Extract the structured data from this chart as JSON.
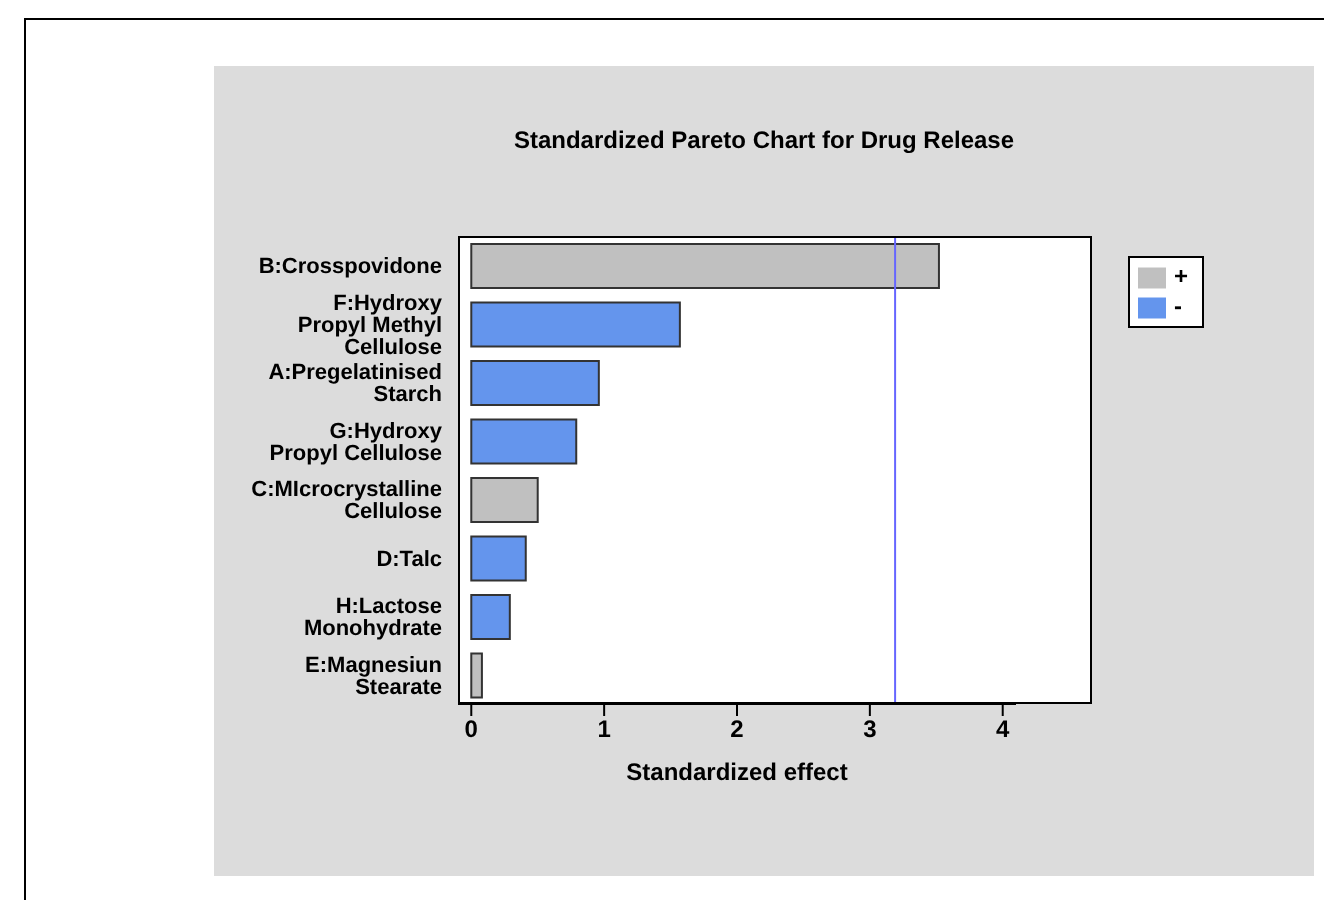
{
  "chart_data": {
    "type": "bar",
    "orientation": "horizontal",
    "stacked": true,
    "title": "Standardized Pareto Chart for Drug Release",
    "xlabel": "Standardized effect",
    "categories": [
      "B:Crosspovidone",
      "F:Hydroxy Propyl Methyl Cellulose",
      "A:Pregelatinised Starch",
      "G:Hydroxy Propyl Cellulose",
      "C:MIcrocrystalline Cellulose",
      "D:Talc",
      "H:Lactose Monohydrate",
      "E:Magnesiun Stearate"
    ],
    "series": [
      {
        "name": "+",
        "color": "#c0c0c0",
        "values": [
          3.52,
          null,
          null,
          null,
          0.5,
          null,
          null,
          0.08
        ]
      },
      {
        "name": "-",
        "color": "#6495ed",
        "values": [
          null,
          1.57,
          0.96,
          0.79,
          null,
          0.41,
          0.29,
          null
        ]
      }
    ],
    "xlim": [
      -0.1,
      4.1
    ],
    "xticks": [
      0,
      1,
      2,
      3,
      4
    ],
    "ref_lines": [
      {
        "axis": "x",
        "value": 3.19,
        "color": "#6666ff"
      }
    ],
    "legend": "top right",
    "grid": false
  }
}
